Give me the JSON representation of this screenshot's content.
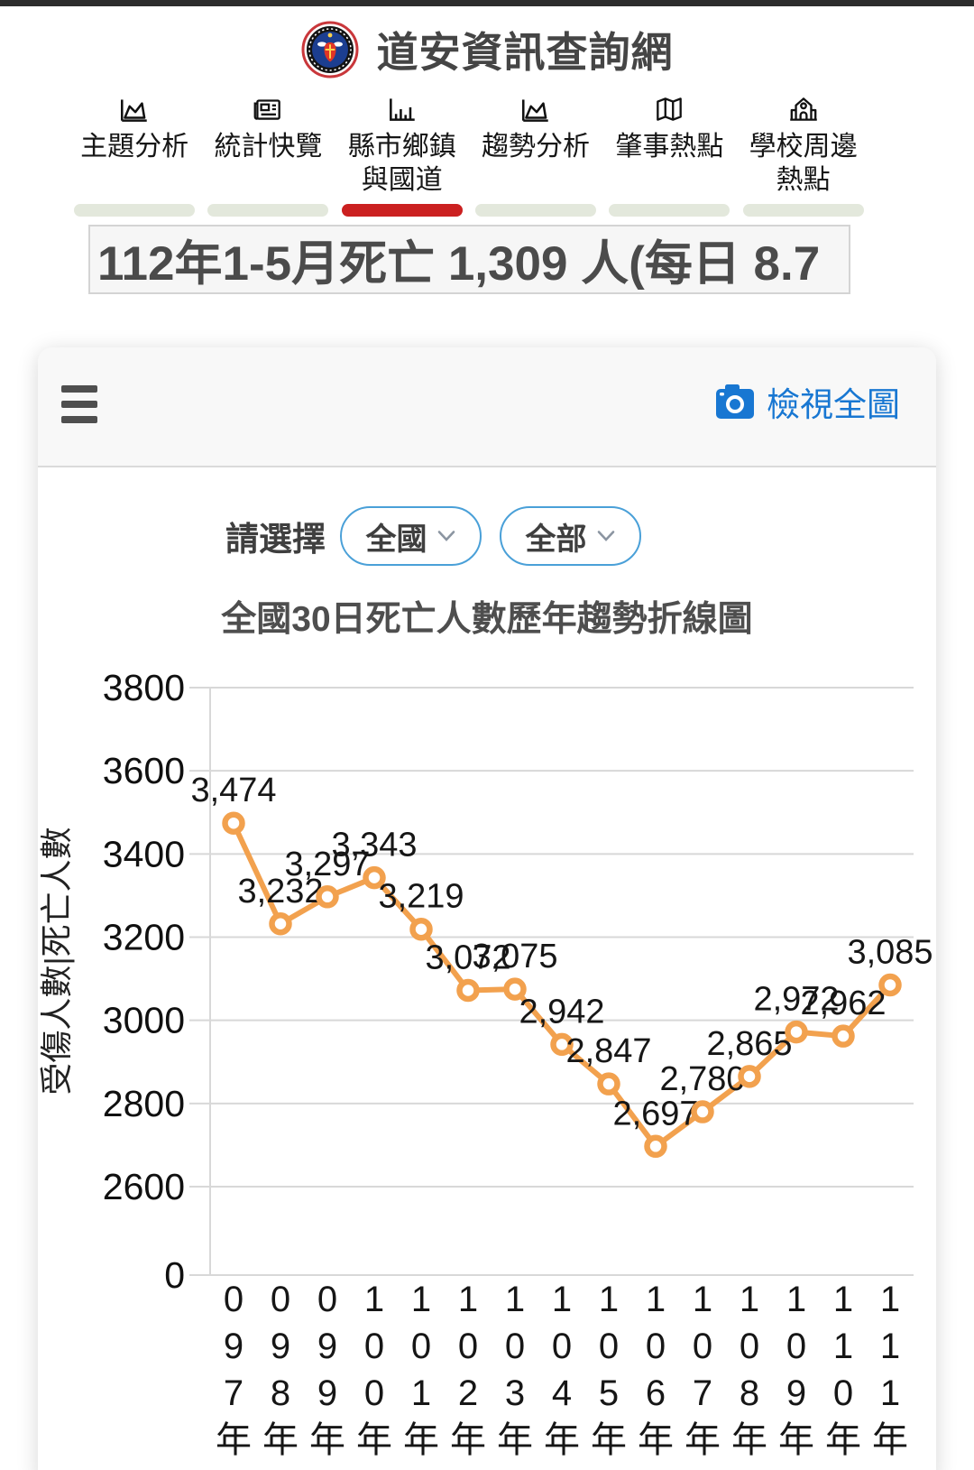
{
  "header": {
    "site_title": "道安資訊查詢網"
  },
  "nav": {
    "items": [
      {
        "label": "主題分析",
        "icon": "area-chart-icon",
        "active": false
      },
      {
        "label": "統計快覽",
        "icon": "newspaper-icon",
        "active": false
      },
      {
        "label": "縣市鄉鎮與國道",
        "icon": "bar-chart-icon",
        "active": true
      },
      {
        "label": "趨勢分析",
        "icon": "area-chart-icon",
        "active": false
      },
      {
        "label": "肇事熱點",
        "icon": "map-icon",
        "active": false
      },
      {
        "label": "學校周邊熱點",
        "icon": "school-icon",
        "active": false
      }
    ],
    "active_color": "#cb2020",
    "inactive_color": "#e3e8dc"
  },
  "marquee": {
    "text": "112年1-5月死亡 1,309 人(每日 8.7"
  },
  "toolbar": {
    "menu_icon": "hamburger-icon",
    "view_full_icon": "camera-icon",
    "view_full_label": "檢視全圖",
    "accent_color": "#1877d2"
  },
  "filters": {
    "prompt": "請選擇",
    "dropdowns": [
      {
        "value": "全國"
      },
      {
        "value": "全部"
      }
    ]
  },
  "chart_data": {
    "type": "line",
    "title": "全國30日死亡人數歷年趨勢折線圖",
    "ylabel": "受傷人數|死亡人數",
    "categories": [
      "097年",
      "098年",
      "099年",
      "100年",
      "101年",
      "102年",
      "103年",
      "104年",
      "105年",
      "106年",
      "107年",
      "108年",
      "109年",
      "110年",
      "111年"
    ],
    "values": [
      3474,
      3232,
      3297,
      3343,
      3219,
      3072,
      3075,
      2942,
      2847,
      2697,
      2780,
      2865,
      2972,
      2962,
      3085
    ],
    "labels": [
      "3,474",
      "3,232",
      "3,297",
      "3,343",
      "3,219",
      "3,072",
      "3,075",
      "2,942",
      "2,847",
      "2,697",
      "2,780",
      "2,865",
      "2,972",
      "2,962",
      "3,085"
    ],
    "yticks": [
      3800,
      3600,
      3400,
      3200,
      3000,
      2800,
      2600
    ],
    "baseline_label": "0",
    "ylim_display": [
      2600,
      3800
    ],
    "grid": "on",
    "legend": "none",
    "line_color": "#F2A14E",
    "marker_style": "ring",
    "label_color": "#161616",
    "grid_color": "#d8d8d8"
  }
}
